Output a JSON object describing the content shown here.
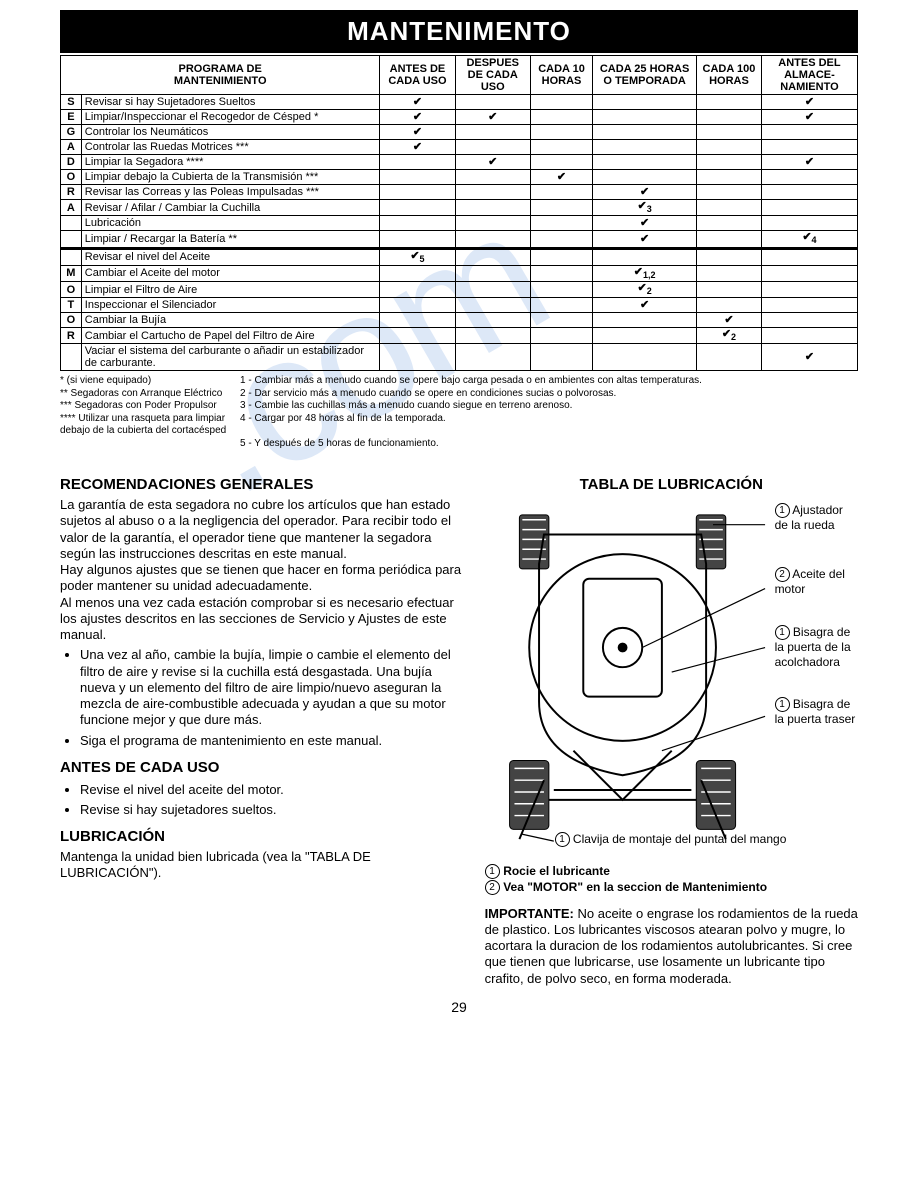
{
  "banner": "MANTENIMENTO",
  "table": {
    "program_title_line1": "PROGRAMA DE",
    "program_title_line2": "MANTENIMIENTO",
    "headers": [
      "ANTES DE CADA USO",
      "DESPUES DE CADA USO",
      "CADA 10 HORAS",
      "CADA 25 HORAS O TEMPORADA",
      "CADA 100 HORAS",
      "ANTES DEL ALMACE- NAMIENTO"
    ],
    "group1_letters": [
      "S",
      "E",
      "G",
      "A",
      "D",
      "O",
      "R",
      "A",
      ""
    ],
    "group1": [
      {
        "task": "Revisar si hay Sujetadores Sueltos",
        "c": [
          "✔",
          "",
          "",
          "",
          "",
          "✔"
        ]
      },
      {
        "task": "Limpiar/Inspeccionar el Recogedor de Césped *",
        "c": [
          "✔",
          "✔",
          "",
          "",
          "",
          "✔"
        ]
      },
      {
        "task": "Controlar los Neumáticos",
        "c": [
          "✔",
          "",
          "",
          "",
          "",
          ""
        ]
      },
      {
        "task": "Controlar las Ruedas Motrices ***",
        "c": [
          "✔",
          "",
          "",
          "",
          "",
          ""
        ]
      },
      {
        "task": "Limpiar la Segadora ****",
        "c": [
          "",
          "✔",
          "",
          "",
          "",
          "✔"
        ]
      },
      {
        "task": "Limpiar debajo la Cubierta de la Transmisión ***",
        "c": [
          "",
          "",
          "✔",
          "",
          "",
          ""
        ]
      },
      {
        "task": "Revisar las Correas y las Poleas Impulsadas ***",
        "c": [
          "",
          "",
          "",
          "✔",
          "",
          ""
        ]
      },
      {
        "task": "Revisar / Afilar / Cambiar la Cuchilla",
        "c": [
          "",
          "",
          "",
          "✔3",
          "",
          ""
        ]
      },
      {
        "task": "Lubricación",
        "c": [
          "",
          "",
          "",
          "✔",
          "",
          ""
        ]
      },
      {
        "task": "Limpiar / Recargar la Batería **",
        "c": [
          "",
          "",
          "",
          "✔",
          "",
          "✔4"
        ]
      }
    ],
    "group2_letters": [
      "",
      "M",
      "O",
      "T",
      "O",
      "R",
      ""
    ],
    "group2": [
      {
        "task": "Revisar el nivel del Aceite",
        "c": [
          "✔5",
          "",
          "",
          "",
          "",
          ""
        ]
      },
      {
        "task": "Cambiar el Aceite del motor",
        "c": [
          "",
          "",
          "",
          "✔1,2",
          "",
          ""
        ]
      },
      {
        "task": "Limpiar el Filtro de Aire",
        "c": [
          "",
          "",
          "",
          "✔2",
          "",
          ""
        ]
      },
      {
        "task": "Inspeccionar el Silenciador",
        "c": [
          "",
          "",
          "",
          "✔",
          "",
          ""
        ]
      },
      {
        "task": "Cambiar la Bujía",
        "c": [
          "",
          "",
          "",
          "",
          "✔",
          ""
        ]
      },
      {
        "task": "Cambiar el Cartucho de Papel del Filtro de Aire",
        "c": [
          "",
          "",
          "",
          "",
          "✔2",
          ""
        ]
      },
      {
        "task": "Vaciar el sistema del carburante o añadir un estabilizador de carburante.",
        "c": [
          "",
          "",
          "",
          "",
          "",
          "✔"
        ]
      }
    ]
  },
  "footnotes": {
    "left": [
      "* (si viene equipado)",
      "** Segadoras con Arranque Eléctrico",
      "*** Segadoras con Poder Propulsor",
      "**** Utilizar una rasqueta para limpiar debajo de la cubierta del cortacésped"
    ],
    "right": [
      "1 - Cambiar más a menudo cuando se opere bajo carga pesada o en ambientes con altas temperaturas.",
      "2 - Dar servicio más a menudo cuando se opere en condiciones sucias o polvorosas.",
      "3 - Cambie las cuchillas más a menudo cuando siegue en terreno arenoso.",
      "4 - Cargar por 48 horas al fin de la temporada.",
      "5 - Y después de 5 horas de funcionamiento."
    ]
  },
  "recs_title": "RECOMENDACIONES GENERALES",
  "recs_p1": "La garantía de esta segadora no cubre los artículos que han estado sujetos al abuso o a la negligencia del operador. Para recibir todo el valor de la garantía, el operador tiene que mantener la segadora según las instrucciones descritas en este manual.",
  "recs_p2": "Hay algunos ajustes que se tienen que hacer en forma periódica para poder mantener su unidad adecuadamente.",
  "recs_p3": "Al menos una vez cada estación comprobar si es necesario efectuar los ajustes descritos en las secciones de Servicio y Ajustes de este manual.",
  "recs_bullets": [
    "Una vez al año, cambie la bujía, limpie o cambie el elemento del filtro de aire y revise si la cuchilla está desgastada. Una bujía nueva y un elemento del filtro de aire limpio/nuevo aseguran la mezcla de aire-combustible adecuada y ayudan a que su motor funcione mejor y que dure más.",
    "Siga el programa de mantenimiento en este manual."
  ],
  "before_title": "ANTES DE CADA USO",
  "before_bullets": [
    "Revise el nivel del aceite del motor.",
    "Revise si hay sujetadores sueltos."
  ],
  "lub_title": "LUBRICACIÓN",
  "lub_p": "Mantenga la unidad bien lubricada (vea la \"TABLA DE LUBRICACIÓN\").",
  "tabla_title": "TABLA DE LUBRICACIÓN",
  "callouts": [
    {
      "num": "1",
      "text": "Ajustador de la rueda"
    },
    {
      "num": "2",
      "text": "Aceite del motor"
    },
    {
      "num": "1",
      "text": "Bisagra de la puerta de la acolchadora"
    },
    {
      "num": "1",
      "text": "Bisagra de la puerta traser"
    }
  ],
  "bottom_call": {
    "num": "1",
    "text": "Clavija de montaje del puntal del mango"
  },
  "legend1": {
    "num": "1",
    "text": "Rocie el lubricante"
  },
  "legend2": {
    "num": "2",
    "text": "Vea \"MOTOR\" en la seccion de Mantenimiento"
  },
  "importante_label": "IMPORTANTE:",
  "importante": " No aceite o engrase los rodamientos de la rueda de plastico. Los lubricantes viscosos atearan polvo y mugre, lo acortara la duracion de los rodamientos autolubricantes. Si cree que tienen que lubricarse, use losamente un lubricante tipo crafito, de polvo seco, en forma moderada.",
  "page_num": "29"
}
